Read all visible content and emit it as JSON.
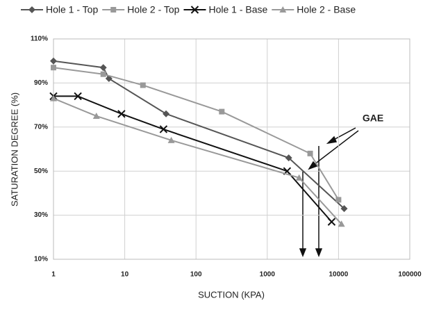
{
  "chart_data": {
    "type": "line",
    "log_x": true,
    "grid": true,
    "xlabel": "SUCTION (KPA)",
    "ylabel": "SATURATION DEGREE (%)",
    "annotation": "GAE",
    "xlim": [
      1,
      100000
    ],
    "xticks": [
      1,
      10,
      100,
      1000,
      10000,
      100000
    ],
    "ylim": [
      10,
      110
    ],
    "yticks": [
      {
        "value": 10,
        "label": "10%"
      },
      {
        "value": 30,
        "label": "30%"
      },
      {
        "value": 50,
        "label": "50%"
      },
      {
        "value": 70,
        "label": "70%"
      },
      {
        "value": 90,
        "label": "90%"
      },
      {
        "value": 110,
        "label": "110%"
      }
    ],
    "series": [
      {
        "name": "Hole 1 - Top",
        "color": "#555555",
        "marker": "diamond",
        "x": [
          1,
          5,
          6,
          38,
          2000,
          12000
        ],
        "values": [
          100,
          97,
          92,
          76,
          56,
          33
        ]
      },
      {
        "name": "Hole 2 - Top",
        "color": "#999999",
        "marker": "square",
        "x": [
          1,
          5,
          18,
          230,
          4000,
          10000
        ],
        "values": [
          97,
          94,
          89,
          77,
          58,
          37
        ]
      },
      {
        "name": "Hole 1 - Base",
        "color": "#111111",
        "marker": "x",
        "x": [
          1,
          2.2,
          9,
          35,
          1900,
          8000
        ],
        "values": [
          84,
          84,
          76,
          69,
          50,
          27
        ]
      },
      {
        "name": "Hole 2 - Base",
        "color": "#999999",
        "marker": "triangle",
        "x": [
          1,
          4,
          45,
          2800,
          11000
        ],
        "values": [
          83,
          75,
          64,
          47,
          26
        ]
      }
    ]
  }
}
